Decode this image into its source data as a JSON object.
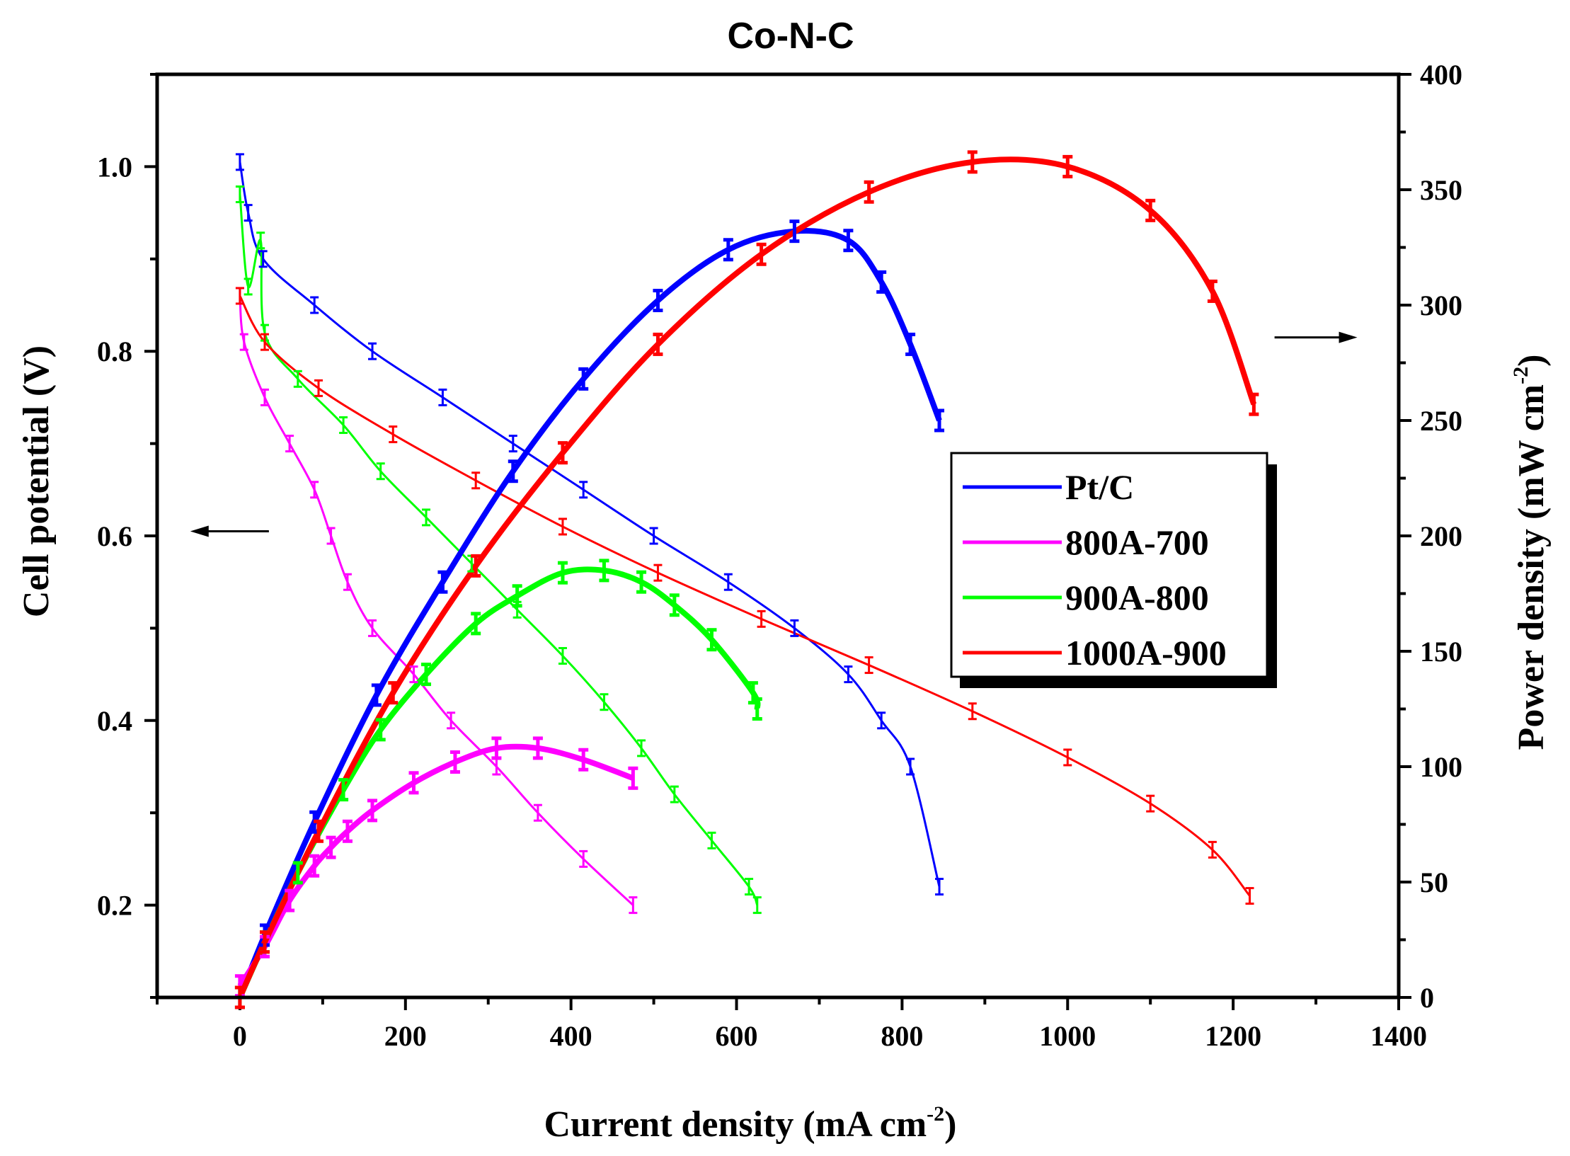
{
  "chart_data": {
    "type": "line",
    "title": "Co-N-C",
    "xlabel": "Current density (mA cm",
    "xlabel_sup": "-2",
    "xlabel_end": ")",
    "ylabel_left": "Cell potential (V)",
    "ylabel_right": "Power density (mW cm",
    "ylabel_right_sup": "-2",
    "ylabel_right_end": ")",
    "xlim": [
      -100,
      1400
    ],
    "ylim_left": [
      0.1,
      1.1
    ],
    "ylim_right": [
      0,
      400
    ],
    "x_ticks": [
      0,
      200,
      400,
      600,
      800,
      1000,
      1200,
      1400
    ],
    "x_tick_labels": [
      "0",
      "200",
      "400",
      "600",
      "800",
      "1000",
      "1200",
      "1400"
    ],
    "y_left_ticks": [
      0.2,
      0.4,
      0.6,
      0.8,
      1.0
    ],
    "y_left_tick_labels": [
      "0.2",
      "0.4",
      "0.6",
      "0.8",
      "1.0"
    ],
    "y_right_ticks": [
      0,
      50,
      100,
      150,
      200,
      250,
      300,
      350,
      400
    ],
    "y_right_tick_labels": [
      "0",
      "50",
      "100",
      "150",
      "200",
      "250",
      "300",
      "350",
      "400"
    ],
    "legend": {
      "position": "center-right",
      "entries": [
        {
          "label": "Pt/C",
          "color": "#0000ff"
        },
        {
          "label": "800A-700",
          "color": "#ff00ff"
        },
        {
          "label": "900A-800",
          "color": "#00ff00"
        },
        {
          "label": "1000A-900",
          "color": "#ff0000"
        }
      ]
    },
    "arrows": [
      {
        "name": "left-axis-arrow",
        "direction": "left",
        "from": [
          35,
          0.605
        ],
        "to": [
          -60,
          0.605
        ]
      },
      {
        "name": "right-axis-arrow",
        "direction": "right",
        "from": [
          1250,
          0.815
        ],
        "to": [
          1350,
          0.815
        ]
      }
    ],
    "series": [
      {
        "name": "Pt/C",
        "color": "#0000ff",
        "kind": "polarization",
        "axis": "left",
        "x": [
          0,
          10,
          28,
          90,
          160,
          245,
          330,
          415,
          500,
          590,
          670,
          735,
          775,
          810,
          845
        ],
        "y": [
          1.005,
          0.95,
          0.9,
          0.85,
          0.8,
          0.75,
          0.7,
          0.65,
          0.6,
          0.55,
          0.5,
          0.45,
          0.4,
          0.35,
          0.22
        ]
      },
      {
        "name": "800A-700",
        "color": "#ff00ff",
        "kind": "polarization",
        "axis": "left",
        "x": [
          0,
          5,
          30,
          60,
          90,
          110,
          130,
          160,
          210,
          255,
          310,
          360,
          415,
          475
        ],
        "y": [
          0.86,
          0.81,
          0.75,
          0.7,
          0.65,
          0.6,
          0.55,
          0.5,
          0.45,
          0.4,
          0.35,
          0.3,
          0.25,
          0.2
        ]
      },
      {
        "name": "900A-800",
        "color": "#00ff00",
        "kind": "polarization",
        "axis": "left",
        "x": [
          0,
          10,
          25,
          30,
          70,
          125,
          170,
          225,
          280,
          335,
          390,
          440,
          485,
          525,
          570,
          615,
          625
        ],
        "y": [
          0.97,
          0.87,
          0.92,
          0.82,
          0.77,
          0.72,
          0.67,
          0.62,
          0.57,
          0.52,
          0.47,
          0.42,
          0.37,
          0.32,
          0.27,
          0.22,
          0.2
        ]
      },
      {
        "name": "1000A-900",
        "color": "#ff0000",
        "kind": "polarization",
        "axis": "left",
        "x": [
          0,
          30,
          95,
          185,
          285,
          390,
          505,
          630,
          760,
          885,
          1000,
          1100,
          1175,
          1220
        ],
        "y": [
          0.86,
          0.81,
          0.76,
          0.71,
          0.66,
          0.61,
          0.56,
          0.51,
          0.46,
          0.41,
          0.36,
          0.31,
          0.26,
          0.21
        ]
      },
      {
        "name": "Pt/C",
        "color": "#0000ff",
        "kind": "power",
        "axis": "right",
        "x": [
          0,
          30,
          90,
          165,
          245,
          330,
          415,
          505,
          590,
          670,
          735,
          775,
          810,
          845
        ],
        "y": [
          0,
          27,
          76,
          131,
          180,
          228,
          268,
          302,
          324,
          332,
          328,
          310,
          283,
          250
        ]
      },
      {
        "name": "800A-700",
        "color": "#ff00ff",
        "kind": "power",
        "axis": "right",
        "x": [
          0,
          30,
          60,
          90,
          110,
          130,
          160,
          210,
          260,
          310,
          360,
          415,
          475
        ],
        "y": [
          5,
          22,
          42,
          57,
          65,
          72,
          81,
          93,
          102,
          108,
          108,
          103,
          95
        ]
      },
      {
        "name": "900A-800",
        "color": "#00ff00",
        "kind": "power",
        "axis": "right",
        "x": [
          0,
          30,
          70,
          125,
          170,
          225,
          285,
          335,
          390,
          440,
          485,
          525,
          570,
          620,
          625
        ],
        "y": [
          0,
          24,
          54,
          90,
          116,
          140,
          162,
          174,
          184,
          185,
          180,
          170,
          155,
          132,
          125
        ]
      },
      {
        "name": "1000A-900",
        "color": "#ff0000",
        "kind": "power",
        "axis": "right",
        "x": [
          0,
          30,
          95,
          185,
          285,
          390,
          505,
          630,
          760,
          885,
          1000,
          1100,
          1175,
          1225
        ],
        "y": [
          0,
          24,
          72,
          132,
          187,
          236,
          283,
          322,
          349,
          362,
          360,
          341,
          306,
          257
        ]
      }
    ]
  }
}
